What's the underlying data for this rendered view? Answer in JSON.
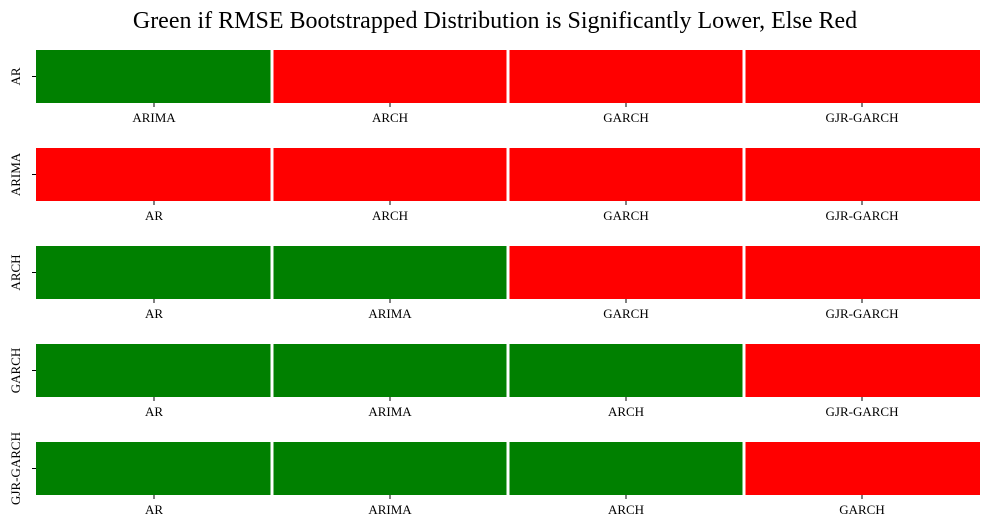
{
  "chart_data": {
    "type": "heatmap",
    "title": "Green if RMSE Bootstrapped Distribution is Significantly Lower, Else Red",
    "legend": {
      "green": "Significantly Lower",
      "red": "Else"
    },
    "colors": {
      "significant": "#008000",
      "not_significant": "#ff0000",
      "cell_border": "#ffffff",
      "background": "#ffffff",
      "text": "#000000"
    },
    "rows": [
      {
        "model": "AR",
        "comparisons": [
          "ARIMA",
          "ARCH",
          "GARCH",
          "GJR-GARCH"
        ],
        "significant": [
          1,
          0,
          0,
          0
        ]
      },
      {
        "model": "ARIMA",
        "comparisons": [
          "AR",
          "ARCH",
          "GARCH",
          "GJR-GARCH"
        ],
        "significant": [
          0,
          0,
          0,
          0
        ]
      },
      {
        "model": "ARCH",
        "comparisons": [
          "AR",
          "ARIMA",
          "GARCH",
          "GJR-GARCH"
        ],
        "significant": [
          1,
          1,
          0,
          0
        ]
      },
      {
        "model": "GARCH",
        "comparisons": [
          "AR",
          "ARIMA",
          "ARCH",
          "GJR-GARCH"
        ],
        "significant": [
          1,
          1,
          1,
          0
        ]
      },
      {
        "model": "GJR-GARCH",
        "comparisons": [
          "AR",
          "ARIMA",
          "ARCH",
          "GARCH"
        ],
        "significant": [
          1,
          1,
          1,
          0
        ]
      }
    ]
  }
}
